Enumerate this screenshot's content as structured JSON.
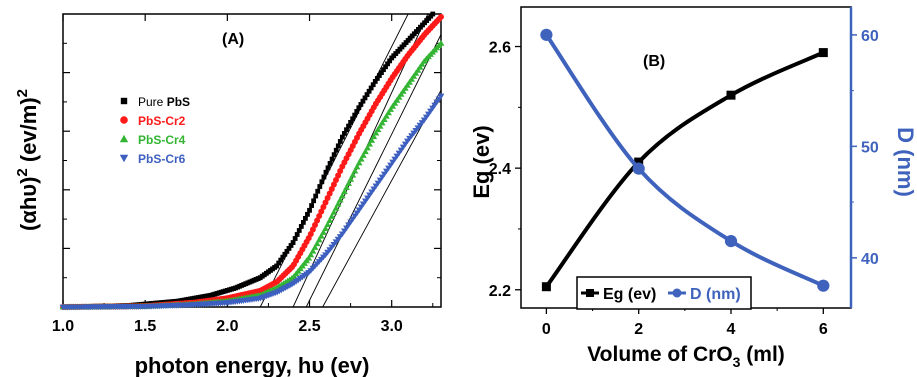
{
  "chart_data": [
    {
      "type": "scatter",
      "panel_label": "(A)",
      "xlabel_prefix": "photon energy, h",
      "xlabel_nu": "υ",
      "xlabel_suffix": " (ev)",
      "ylabel_main": "(αhυ)",
      "ylabel_sup": "2",
      "ylabel_unit": " (ev/m)",
      "ylabel_unit_sup": "2",
      "xlim": [
        1.0,
        3.3
      ],
      "ylim": [
        0,
        100
      ],
      "x_ticks": [
        "1.0",
        "1.5",
        "2.0",
        "2.5",
        "3.0"
      ],
      "y_tick_labels_shown": false,
      "legend_placement": "upper-left",
      "series": [
        {
          "name_plain": "Pure ",
          "name_bold": "PbS",
          "color": "#000000",
          "marker": "square",
          "x": [
            1.0,
            1.4,
            1.7,
            1.9,
            2.05,
            2.2,
            2.3,
            2.4,
            2.5,
            2.6,
            2.7,
            2.8,
            2.9,
            3.0,
            3.1,
            3.2,
            3.25
          ],
          "y": [
            0,
            0.5,
            2,
            4,
            6.5,
            10,
            14,
            22,
            33,
            46,
            58,
            68,
            77,
            85,
            91,
            97,
            100
          ]
        },
        {
          "name_plain": "",
          "name_bold": "PbS-Cr2",
          "color": "#ff1a1a",
          "marker": "circle",
          "x": [
            1.0,
            1.5,
            1.8,
            2.0,
            2.2,
            2.3,
            2.4,
            2.5,
            2.6,
            2.7,
            2.8,
            2.9,
            3.0,
            3.1,
            3.2,
            3.3
          ],
          "y": [
            0,
            0.3,
            1.5,
            3,
            5.5,
            8.5,
            14,
            24,
            36,
            48,
            59,
            69,
            78,
            86,
            93,
            99
          ]
        },
        {
          "name_plain": "",
          "name_bold": "PbS-Cr4",
          "color": "#33b533",
          "marker": "triangle-up",
          "x": [
            1.0,
            1.5,
            1.8,
            2.0,
            2.2,
            2.3,
            2.4,
            2.5,
            2.6,
            2.7,
            2.8,
            2.9,
            3.0,
            3.1,
            3.2,
            3.3
          ],
          "y": [
            0,
            0.2,
            1,
            2,
            4,
            6.5,
            10,
            17,
            27,
            38,
            49,
            59,
            68,
            76,
            84,
            90
          ]
        },
        {
          "name_plain": "",
          "name_bold": "PbS-Cr6",
          "color": "#3d5fbf",
          "marker": "triangle-down",
          "x": [
            1.0,
            1.5,
            1.8,
            2.0,
            2.2,
            2.3,
            2.4,
            2.5,
            2.6,
            2.7,
            2.8,
            2.9,
            3.0,
            3.1,
            3.2,
            3.3
          ],
          "y": [
            0,
            0.2,
            0.8,
            1.5,
            3,
            5,
            8,
            12,
            18,
            25,
            33,
            41,
            49,
            57,
            64,
            72
          ]
        }
      ],
      "tangent_lines": [
        {
          "x": [
            2.2,
            3.1
          ],
          "y": [
            0,
            100
          ]
        },
        {
          "x": [
            2.4,
            3.22
          ],
          "y": [
            0,
            100
          ]
        },
        {
          "x": [
            2.48,
            3.3
          ],
          "y": [
            0,
            93
          ]
        },
        {
          "x": [
            2.58,
            3.3
          ],
          "y": [
            0,
            74
          ]
        }
      ]
    },
    {
      "type": "line",
      "panel_label": "(B)",
      "xlabel_prefix": "Volume of CrO",
      "xlabel_sub": "3",
      "xlabel_suffix": " (ml)",
      "ylabel_left": "Eg (ev)",
      "ylabel_right": "D (nm)",
      "x": [
        0,
        2,
        4,
        6
      ],
      "x_ticks": [
        "0",
        "2",
        "4",
        "6"
      ],
      "xlim": [
        -0.55,
        6.6
      ],
      "ylim_left": [
        2.17,
        2.665
      ],
      "ylim_right": [
        35.5,
        62.5
      ],
      "y_left_ticks": [
        "2.2",
        "2.4",
        "2.6"
      ],
      "y_right_ticks": [
        "40",
        "50",
        "60"
      ],
      "legend_placement": "bottom-center",
      "series": [
        {
          "name": "Eg (ev)",
          "axis": "left",
          "color": "#000000",
          "marker": "square",
          "values": [
            2.205,
            2.41,
            2.52,
            2.59
          ]
        },
        {
          "name": "D (nm)",
          "axis": "right",
          "color": "#3f63bd",
          "marker": "circle",
          "values": [
            60,
            48,
            41.5,
            37.5
          ]
        }
      ]
    }
  ]
}
